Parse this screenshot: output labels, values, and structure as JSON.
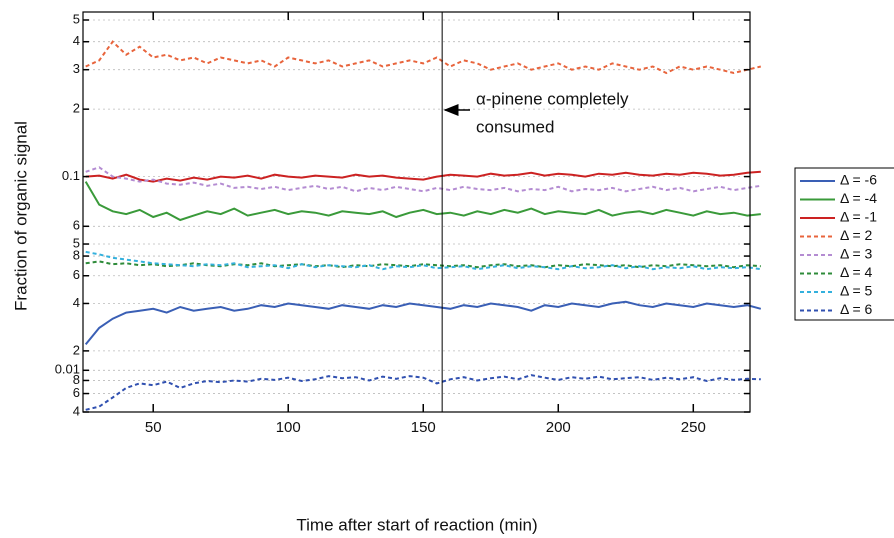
{
  "chart_data": [
    {
      "type": "line",
      "xlabel": "Time after start of reaction (min)",
      "ylabel": "Fraction of organic signal",
      "annotation": [
        "α-pinene completely",
        "consumed"
      ],
      "vline": 157,
      "x": [
        25,
        30,
        35,
        40,
        45,
        50,
        55,
        60,
        65,
        70,
        75,
        80,
        85,
        90,
        95,
        100,
        105,
        110,
        115,
        120,
        125,
        130,
        135,
        140,
        145,
        150,
        155,
        160,
        165,
        170,
        175,
        180,
        185,
        190,
        195,
        200,
        205,
        210,
        215,
        220,
        225,
        230,
        235,
        240,
        245,
        250,
        255,
        260,
        265,
        270,
        275
      ],
      "xlim": [
        24,
        271
      ],
      "xticks": [
        50,
        100,
        150,
        200,
        250
      ],
      "log_y": true,
      "grid": true,
      "ylim": [
        0.048,
        0.5
      ],
      "yticks": [
        {
          "value": 0.5,
          "label": "5"
        },
        {
          "value": 0.4,
          "label": "4"
        },
        {
          "value": 0.3,
          "label": "3"
        },
        {
          "value": 0.2,
          "label": "2"
        },
        0.1,
        {
          "value": 0.06,
          "label": "6"
        },
        {
          "value": 0.05,
          "label": "5"
        }
      ],
      "series": [
        {
          "name": "Δ = -4",
          "color": "#3a9a3a",
          "dashed": false,
          "values": [
            0.095,
            0.075,
            0.07,
            0.068,
            0.071,
            0.066,
            0.069,
            0.064,
            0.067,
            0.07,
            0.068,
            0.072,
            0.067,
            0.069,
            0.071,
            0.068,
            0.07,
            0.069,
            0.067,
            0.07,
            0.069,
            0.068,
            0.07,
            0.066,
            0.069,
            0.071,
            0.068,
            0.069,
            0.067,
            0.07,
            0.068,
            0.071,
            0.069,
            0.072,
            0.068,
            0.07,
            0.069,
            0.068,
            0.071,
            0.067,
            0.069,
            0.07,
            0.068,
            0.071,
            0.069,
            0.067,
            0.07,
            0.068,
            0.069,
            0.067,
            0.068
          ]
        },
        {
          "name": "Δ = -1",
          "color": "#cc2222",
          "dashed": false,
          "values": [
            0.1,
            0.101,
            0.098,
            0.102,
            0.097,
            0.095,
            0.098,
            0.096,
            0.099,
            0.097,
            0.1,
            0.099,
            0.101,
            0.098,
            0.102,
            0.1,
            0.099,
            0.101,
            0.1,
            0.099,
            0.102,
            0.1,
            0.101,
            0.099,
            0.098,
            0.097,
            0.1,
            0.102,
            0.101,
            0.1,
            0.103,
            0.101,
            0.102,
            0.104,
            0.101,
            0.103,
            0.102,
            0.1,
            0.103,
            0.102,
            0.104,
            0.102,
            0.101,
            0.103,
            0.102,
            0.104,
            0.103,
            0.101,
            0.102,
            0.104,
            0.105
          ]
        },
        {
          "name": "Δ = 2",
          "color": "#e8643c",
          "dashed": true,
          "values": [
            0.31,
            0.33,
            0.4,
            0.35,
            0.38,
            0.34,
            0.35,
            0.33,
            0.34,
            0.32,
            0.34,
            0.33,
            0.32,
            0.33,
            0.31,
            0.34,
            0.33,
            0.32,
            0.33,
            0.31,
            0.32,
            0.33,
            0.31,
            0.32,
            0.33,
            0.32,
            0.34,
            0.31,
            0.33,
            0.32,
            0.3,
            0.31,
            0.32,
            0.3,
            0.31,
            0.32,
            0.3,
            0.31,
            0.3,
            0.32,
            0.31,
            0.3,
            0.31,
            0.29,
            0.31,
            0.3,
            0.31,
            0.3,
            0.29,
            0.3,
            0.31
          ]
        },
        {
          "name": "Δ = 3",
          "color": "#b48cd2",
          "dashed": true,
          "values": [
            0.105,
            0.11,
            0.1,
            0.098,
            0.095,
            0.097,
            0.093,
            0.092,
            0.094,
            0.091,
            0.093,
            0.089,
            0.09,
            0.088,
            0.09,
            0.087,
            0.089,
            0.091,
            0.088,
            0.09,
            0.086,
            0.089,
            0.087,
            0.09,
            0.088,
            0.086,
            0.089,
            0.087,
            0.09,
            0.088,
            0.087,
            0.089,
            0.086,
            0.088,
            0.087,
            0.09,
            0.086,
            0.088,
            0.087,
            0.089,
            0.086,
            0.088,
            0.09,
            0.087,
            0.089,
            0.086,
            0.088,
            0.09,
            0.087,
            0.089,
            0.091
          ]
        }
      ]
    },
    {
      "type": "line",
      "log_y": true,
      "grid": true,
      "ylim": [
        0.017,
        0.09
      ],
      "yticks": [
        {
          "value": 0.08,
          "label": "8"
        },
        {
          "value": 0.06,
          "label": "6"
        },
        {
          "value": 0.04,
          "label": "4"
        },
        {
          "value": 0.02,
          "label": "2"
        }
      ],
      "series": [
        {
          "name": "Δ = 4",
          "color": "#2e8b3a",
          "dashed": true,
          "values": [
            0.072,
            0.074,
            0.071,
            0.072,
            0.07,
            0.071,
            0.069,
            0.07,
            0.072,
            0.07,
            0.069,
            0.071,
            0.07,
            0.072,
            0.069,
            0.07,
            0.071,
            0.069,
            0.07,
            0.068,
            0.07,
            0.069,
            0.071,
            0.07,
            0.069,
            0.071,
            0.07,
            0.069,
            0.07,
            0.068,
            0.07,
            0.071,
            0.069,
            0.07,
            0.068,
            0.07,
            0.069,
            0.071,
            0.07,
            0.069,
            0.07,
            0.068,
            0.07,
            0.069,
            0.071,
            0.07,
            0.069,
            0.07,
            0.068,
            0.07,
            0.069
          ]
        },
        {
          "name": "Δ = 5",
          "color": "#33b0dd",
          "dashed": true,
          "values": [
            0.085,
            0.082,
            0.078,
            0.076,
            0.074,
            0.072,
            0.071,
            0.07,
            0.069,
            0.071,
            0.07,
            0.072,
            0.068,
            0.069,
            0.07,
            0.067,
            0.071,
            0.068,
            0.07,
            0.069,
            0.068,
            0.07,
            0.066,
            0.069,
            0.068,
            0.07,
            0.067,
            0.068,
            0.069,
            0.066,
            0.068,
            0.07,
            0.067,
            0.069,
            0.068,
            0.066,
            0.069,
            0.067,
            0.068,
            0.07,
            0.067,
            0.069,
            0.066,
            0.068,
            0.067,
            0.069,
            0.066,
            0.068,
            0.067,
            0.068,
            0.066
          ]
        },
        {
          "name": "Δ = -6",
          "color": "#3a5fb5",
          "dashed": false,
          "values": [
            0.022,
            0.028,
            0.032,
            0.035,
            0.036,
            0.037,
            0.035,
            0.038,
            0.036,
            0.037,
            0.038,
            0.036,
            0.037,
            0.039,
            0.038,
            0.04,
            0.039,
            0.038,
            0.037,
            0.039,
            0.038,
            0.037,
            0.039,
            0.038,
            0.04,
            0.039,
            0.038,
            0.037,
            0.039,
            0.038,
            0.04,
            0.039,
            0.038,
            0.036,
            0.039,
            0.038,
            0.04,
            0.039,
            0.038,
            0.04,
            0.041,
            0.039,
            0.038,
            0.04,
            0.039,
            0.038,
            0.04,
            0.039,
            0.038,
            0.039,
            0.037
          ]
        }
      ]
    },
    {
      "type": "line",
      "log_y": true,
      "grid": true,
      "ylim": [
        0.004,
        0.012
      ],
      "yticks": [
        0.01,
        {
          "value": 0.008,
          "label": "8"
        },
        {
          "value": 0.006,
          "label": "6"
        },
        {
          "value": 0.004,
          "label": "4"
        }
      ],
      "series": [
        {
          "name": "Δ = 6",
          "color": "#3050b0",
          "dashed": true,
          "values": [
            0.0042,
            0.0045,
            0.0055,
            0.0068,
            0.0075,
            0.0072,
            0.0078,
            0.0068,
            0.0075,
            0.0079,
            0.0077,
            0.008,
            0.0078,
            0.0083,
            0.0081,
            0.0085,
            0.0079,
            0.0082,
            0.0088,
            0.0084,
            0.0086,
            0.008,
            0.0087,
            0.0083,
            0.0088,
            0.0085,
            0.0075,
            0.0082,
            0.0086,
            0.008,
            0.0084,
            0.0087,
            0.0082,
            0.009,
            0.0085,
            0.0081,
            0.0086,
            0.0083,
            0.0087,
            0.0082,
            0.0084,
            0.0086,
            0.0081,
            0.0085,
            0.0082,
            0.0086,
            0.0079,
            0.0084,
            0.0081,
            0.0083,
            0.0082
          ]
        }
      ]
    }
  ]
}
